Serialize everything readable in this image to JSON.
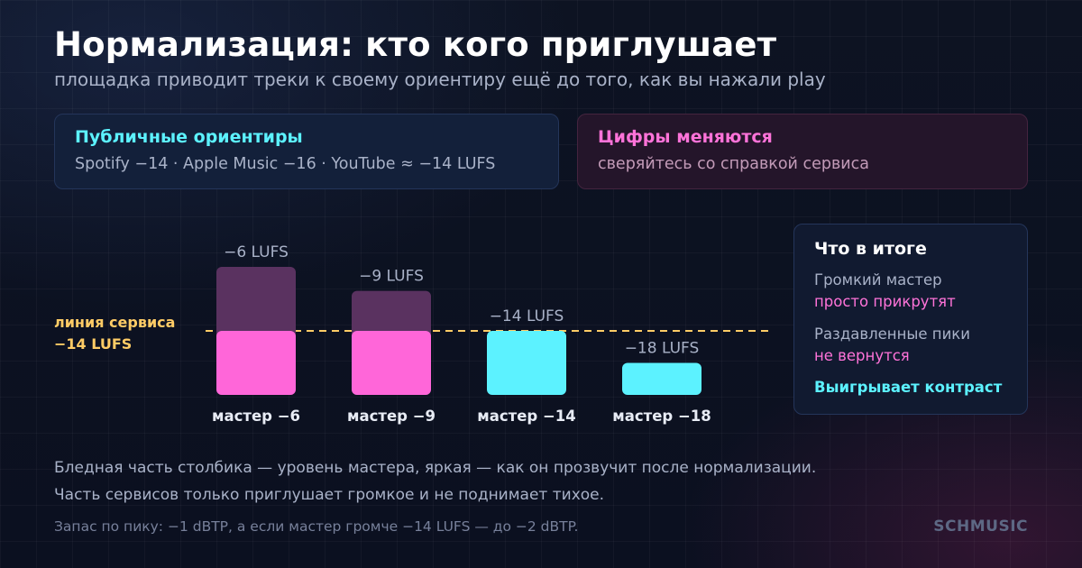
{
  "header": {
    "title": "Нормализация: кто кого приглушает",
    "subtitle": "площадка приводит треки к своему ориентиру ещё до того, как вы нажали play"
  },
  "cards": {
    "public": {
      "heading": "Публичные ориентиры",
      "body": "Spotify −14 · Apple Music −16 · YouTube ≈ −14 LUFS"
    },
    "change": {
      "heading": "Цифры меняются",
      "body": "сверяйтесь со справкой сервиса"
    }
  },
  "service_line": {
    "label_line1": "линия сервиса",
    "label_line2": "−14 LUFS"
  },
  "chart_data": {
    "type": "bar",
    "reference_lufs": -14,
    "categories": [
      "мастер −6",
      "мастер −9",
      "мастер −14",
      "мастер −18"
    ],
    "series": [
      {
        "values": [
          -6,
          -9,
          -14,
          -18
        ]
      },
      {
        "values": [
          -14,
          -14,
          -14,
          -18
        ]
      }
    ],
    "data_labels": [
      "−6 LUFS",
      "−9 LUFS",
      "−14 LUFS",
      "−18 LUFS"
    ],
    "colors": {
      "loud_bright": "#ff66d9",
      "loud_pale": "#5a3260",
      "ok": "#5cf2ff",
      "line": "#ffcc66",
      "label": "#a9b2c8"
    }
  },
  "summary": {
    "title": "Что в итоге",
    "line1": "Громкий мастер",
    "line2": "просто прикрутят",
    "line3": "Раздавленные пики",
    "line4": "не вернутся",
    "win": "Выигрывает контраст"
  },
  "notes": {
    "line1": "Бледная часть столбика — уровень мастера, яркая — как он прозвучит после нормализации.",
    "line2": "Часть сервисов только приглушает громкое и не поднимает тихое.",
    "footnote": "Запас по пику: −1 dBTP, а если мастер громче −14 LUFS — до −2 dBTP."
  },
  "brand": "SCHMUSIC"
}
